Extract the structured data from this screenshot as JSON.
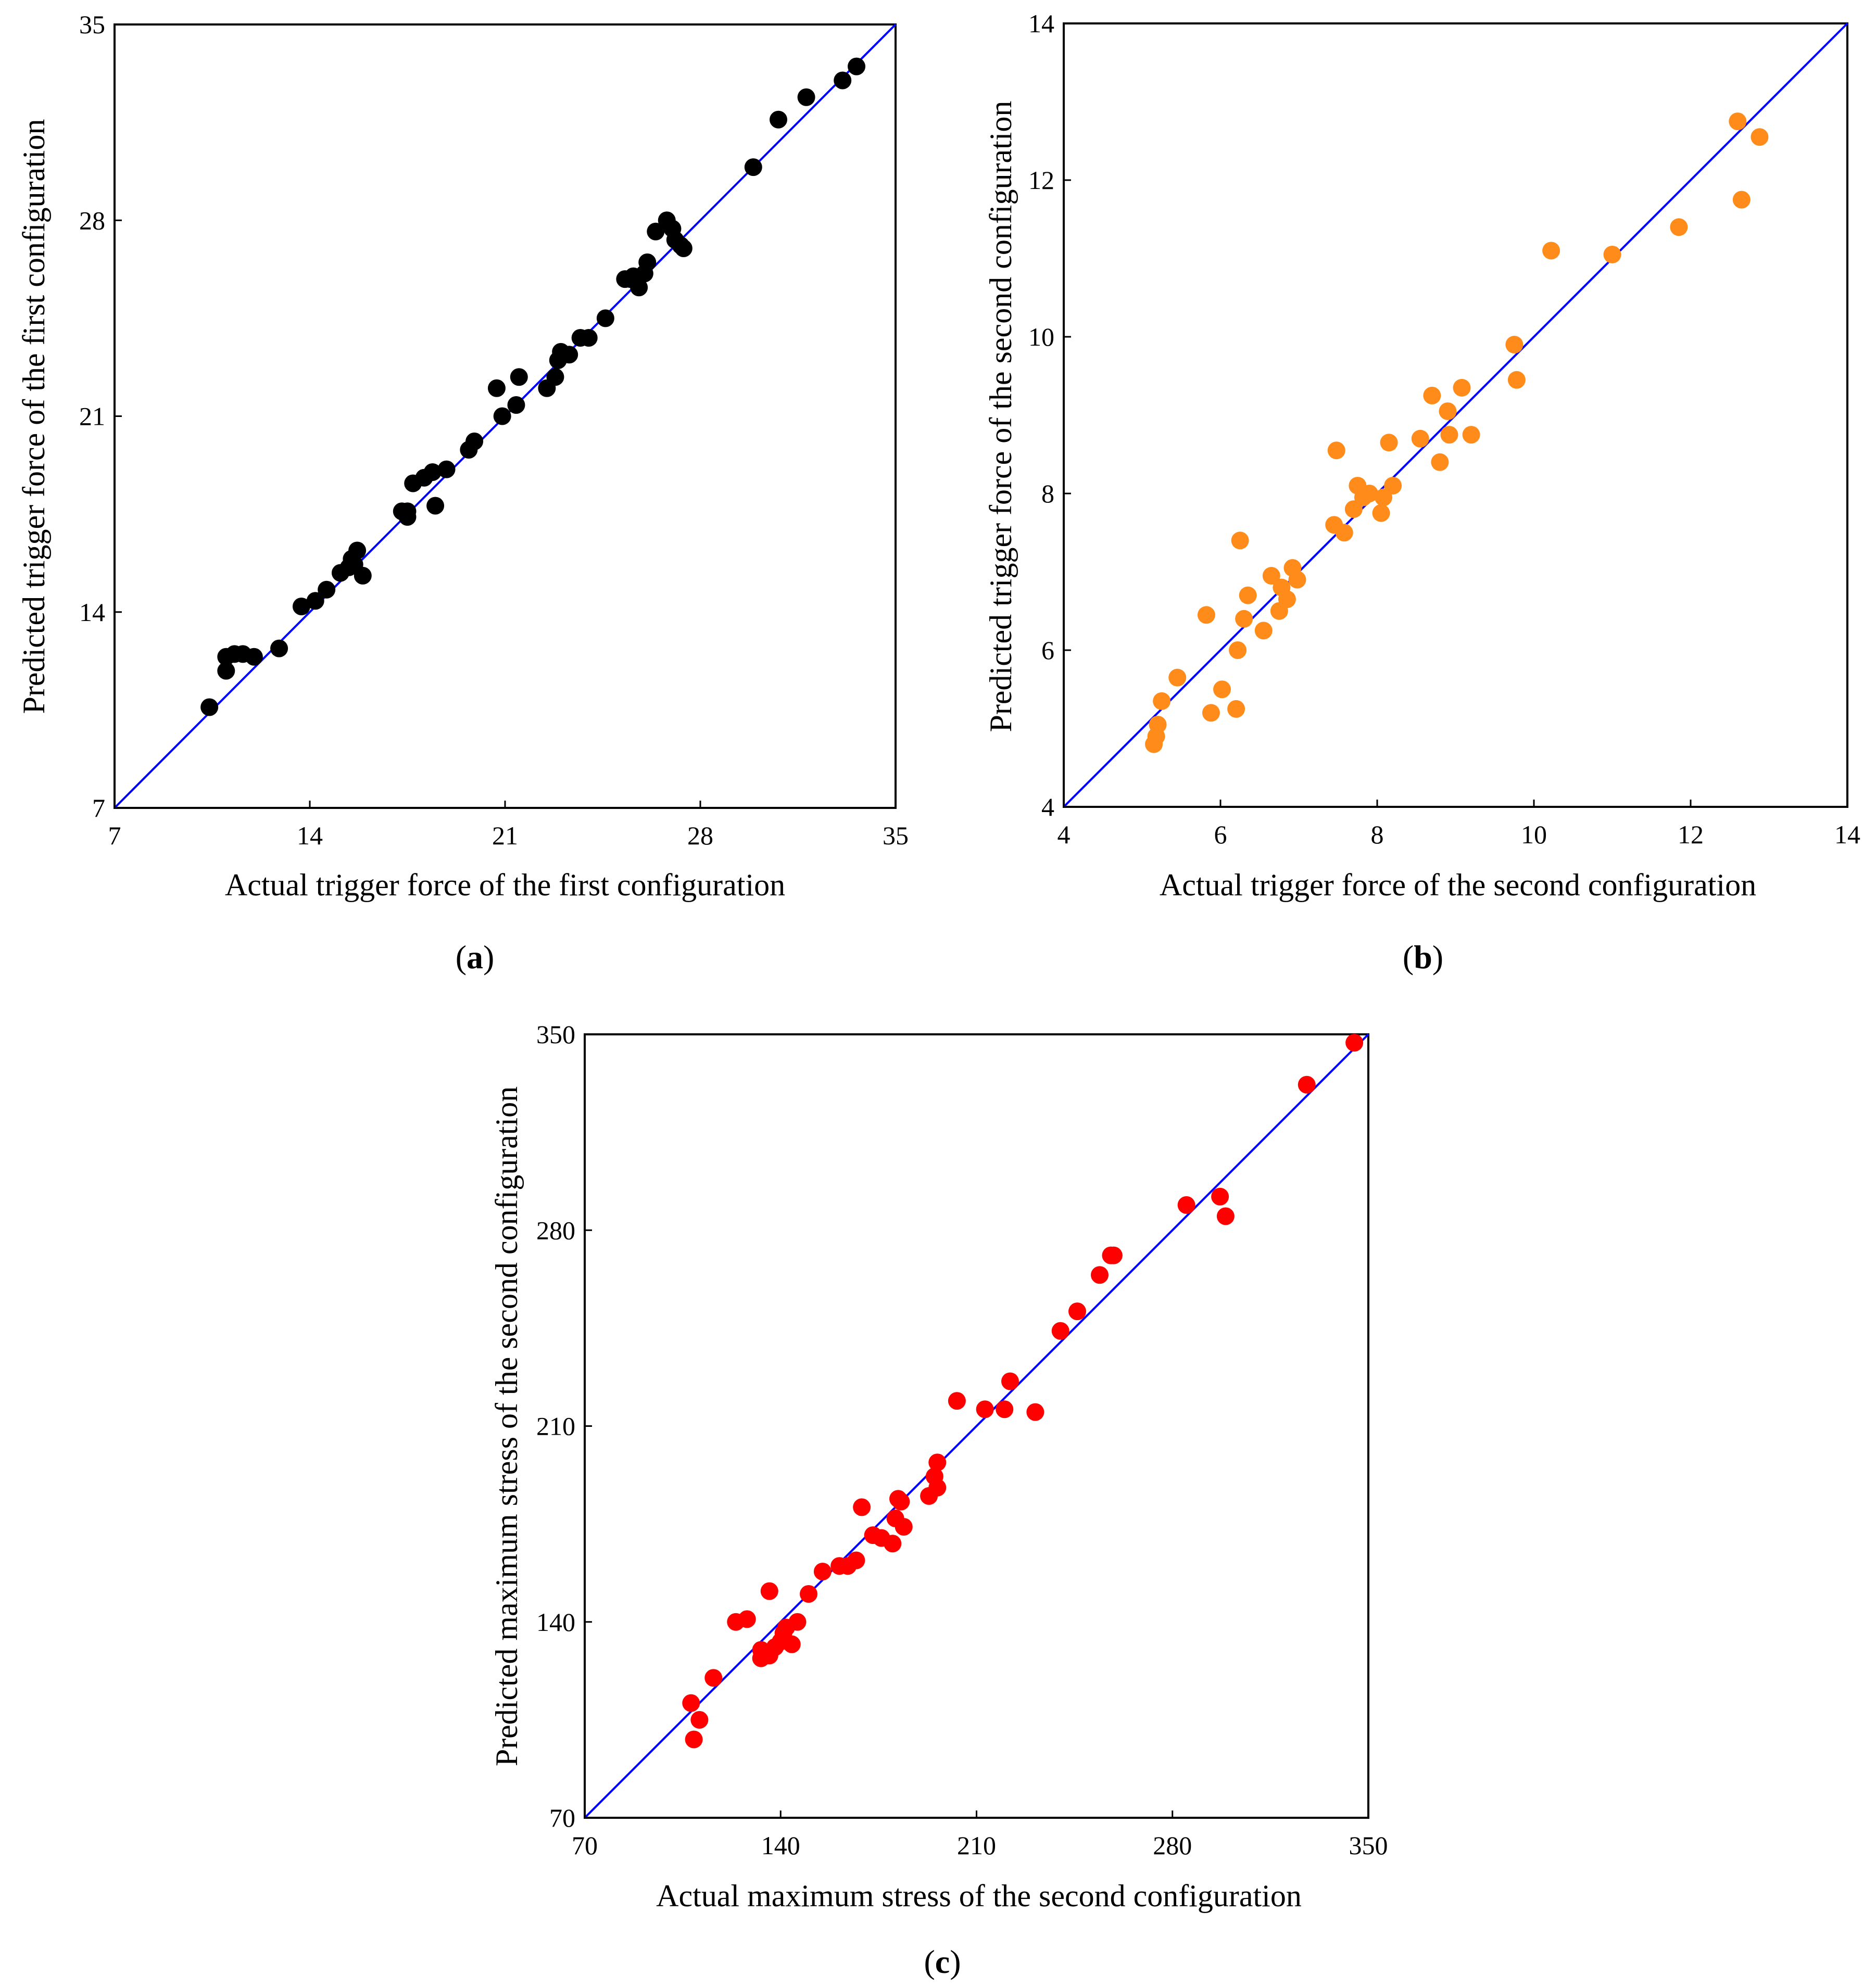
{
  "figure": {
    "panels": [
      {
        "label_open": "(",
        "label_letter": "a",
        "label_close": ")"
      },
      {
        "label_open": "(",
        "label_letter": "b",
        "label_close": ")"
      },
      {
        "label_open": "(",
        "label_letter": "c",
        "label_close": ")"
      }
    ]
  },
  "chart_data": [
    {
      "type": "scatter",
      "title": "",
      "xlabel": "Actual trigger force of the first configuration",
      "ylabel": "Predicted trigger force of the first configuration",
      "xlim": [
        7,
        35
      ],
      "ylim": [
        7,
        35
      ],
      "xticks": [
        "7",
        "14",
        "21",
        "28",
        "35"
      ],
      "yticks": [
        "7",
        "14",
        "21",
        "28",
        "35"
      ],
      "marker_color": "#000000",
      "line_color": "#0000ff",
      "reference_line": "y = x",
      "series": [
        {
          "name": "first configuration",
          "x": [
            10.4,
            11.0,
            11.0,
            11.3,
            11.6,
            12.0,
            12.9,
            13.7,
            14.2,
            14.6,
            15.1,
            15.4,
            15.5,
            15.6,
            15.7,
            15.9,
            17.3,
            17.5,
            17.5,
            17.7,
            18.1,
            18.5,
            18.4,
            18.9,
            19.7,
            19.9,
            20.7,
            20.9,
            21.4,
            21.5,
            22.5,
            22.8,
            22.9,
            23.0,
            23.3,
            23.7,
            24.0,
            24.6,
            25.3,
            25.5,
            25.6,
            25.8,
            26.1,
            26.0,
            26.4,
            26.8,
            27.0,
            27.1,
            27.3,
            27.4,
            29.9,
            30.8,
            31.8,
            33.1,
            33.6
          ],
          "y": [
            10.6,
            11.9,
            12.4,
            12.5,
            12.5,
            12.4,
            12.7,
            14.2,
            14.4,
            14.8,
            15.4,
            15.6,
            15.9,
            15.7,
            16.2,
            15.3,
            17.6,
            17.4,
            17.6,
            18.6,
            18.8,
            17.8,
            19.0,
            19.1,
            19.8,
            20.1,
            22.0,
            21.0,
            21.4,
            22.4,
            22.0,
            22.4,
            23.0,
            23.3,
            23.2,
            23.8,
            23.8,
            24.5,
            25.9,
            25.9,
            26.0,
            25.6,
            26.5,
            26.1,
            27.6,
            28.0,
            27.7,
            27.3,
            27.1,
            27.0,
            29.9,
            31.6,
            32.4,
            33.0,
            33.5
          ]
        }
      ]
    },
    {
      "type": "scatter",
      "title": "",
      "xlabel": "Actual trigger force of the second configuration",
      "ylabel": "Predicted trigger force of the second configuration",
      "xlim": [
        4,
        14
      ],
      "ylim": [
        4,
        14
      ],
      "xticks": [
        "4",
        "6",
        "8",
        "10",
        "12",
        "14"
      ],
      "yticks": [
        "4",
        "6",
        "8",
        "10",
        "12",
        "14"
      ],
      "marker_color": "#ff8c1a",
      "line_color": "#0000ff",
      "reference_line": "y = x",
      "series": [
        {
          "name": "second configuration",
          "x": [
            5.15,
            5.18,
            5.2,
            5.25,
            5.45,
            5.82,
            5.88,
            6.02,
            6.2,
            6.22,
            6.25,
            6.3,
            6.35,
            6.55,
            6.65,
            6.75,
            6.78,
            6.85,
            6.92,
            6.98,
            7.45,
            7.48,
            7.58,
            7.7,
            7.75,
            7.82,
            7.9,
            8.05,
            8.08,
            8.15,
            8.2,
            8.55,
            8.7,
            8.8,
            8.9,
            8.92,
            9.08,
            9.2,
            9.75,
            9.78,
            10.22,
            11.0,
            11.85,
            12.6,
            12.65,
            12.88
          ],
          "y": [
            4.8,
            4.9,
            5.05,
            5.35,
            5.65,
            6.45,
            5.2,
            5.5,
            5.25,
            6.0,
            7.4,
            6.4,
            6.7,
            6.25,
            6.95,
            6.5,
            6.8,
            6.65,
            7.05,
            6.9,
            7.6,
            8.55,
            7.5,
            7.8,
            8.1,
            7.95,
            8.0,
            7.75,
            7.95,
            8.65,
            8.1,
            8.7,
            9.25,
            8.4,
            9.05,
            8.75,
            9.35,
            8.75,
            9.9,
            9.45,
            11.1,
            11.05,
            11.4,
            12.75,
            11.75,
            12.55
          ]
        }
      ]
    },
    {
      "type": "scatter",
      "title": "",
      "xlabel": "Actual maximum stress of  the second configuration",
      "ylabel": "Predicted maximum stress of  the second configuration",
      "xlim": [
        70,
        350
      ],
      "ylim": [
        70,
        350
      ],
      "xticks": [
        "70",
        "140",
        "210",
        "280",
        "350"
      ],
      "yticks": [
        "70",
        "140",
        "210",
        "280",
        "350"
      ],
      "marker_color": "#ff0000",
      "line_color": "#0000ff",
      "reference_line": "y = x",
      "series": [
        {
          "name": "maximum stress",
          "x": [
            108,
            109,
            111,
            116,
            124,
            128,
            133,
            133,
            135,
            136,
            136,
            138,
            140,
            141,
            142,
            144,
            146,
            150,
            155,
            161,
            164,
            167,
            169,
            173,
            176,
            180,
            181,
            182,
            183,
            184,
            193,
            195,
            196,
            196,
            203,
            213,
            220,
            222,
            231,
            240,
            246,
            254,
            258,
            259,
            285,
            297,
            299,
            328,
            345
          ],
          "y": [
            111,
            98,
            105,
            120,
            140,
            141,
            127,
            130,
            128,
            128,
            151,
            131,
            133,
            136,
            138,
            132,
            140,
            150,
            158,
            160,
            160,
            162,
            181,
            171,
            170,
            168,
            177,
            184,
            183,
            174,
            185,
            192,
            188,
            197,
            219,
            216,
            216,
            226,
            215,
            244,
            251,
            264,
            271,
            271,
            289,
            292,
            285,
            332,
            347
          ]
        }
      ]
    }
  ]
}
